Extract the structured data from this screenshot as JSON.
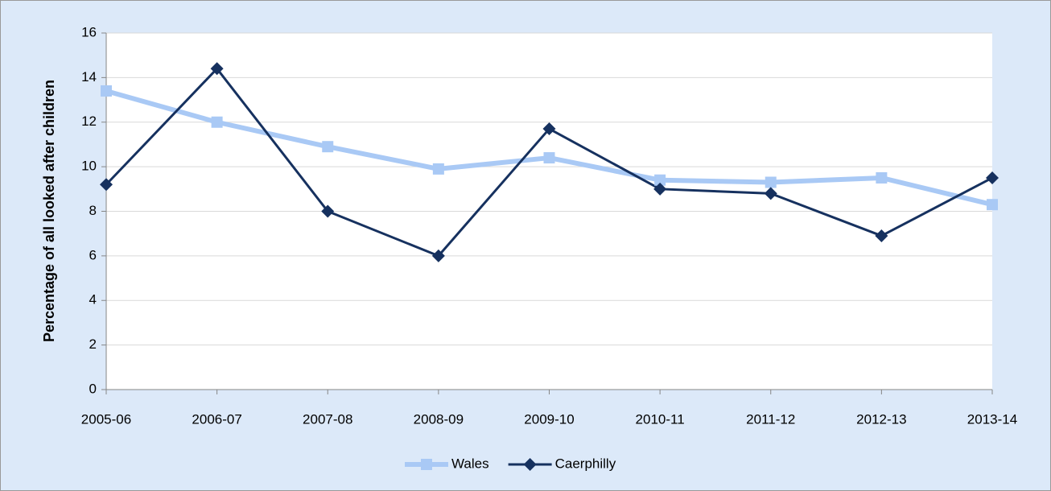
{
  "chart_data": {
    "type": "line",
    "y_label": "Percentage of all looked after children",
    "categories": [
      "2005-06",
      "2006-07",
      "2007-08",
      "2008-09",
      "2009-10",
      "2010-11",
      "2011-12",
      "2012-13",
      "2013-14"
    ],
    "series": [
      {
        "name": "Wales",
        "color": "#a9c9f5",
        "marker": "square",
        "values": [
          13.4,
          12.0,
          10.9,
          9.9,
          10.4,
          9.4,
          9.3,
          9.5,
          8.3
        ]
      },
      {
        "name": "Caerphilly",
        "color": "#16315f",
        "marker": "diamond",
        "values": [
          9.2,
          14.4,
          8.0,
          6.0,
          11.7,
          9.0,
          8.8,
          6.9,
          9.5
        ]
      }
    ],
    "ylim": [
      0,
      16
    ],
    "yticks": [
      0,
      2,
      4,
      6,
      8,
      10,
      12,
      14,
      16
    ],
    "grid": true,
    "legend": "bottom"
  }
}
